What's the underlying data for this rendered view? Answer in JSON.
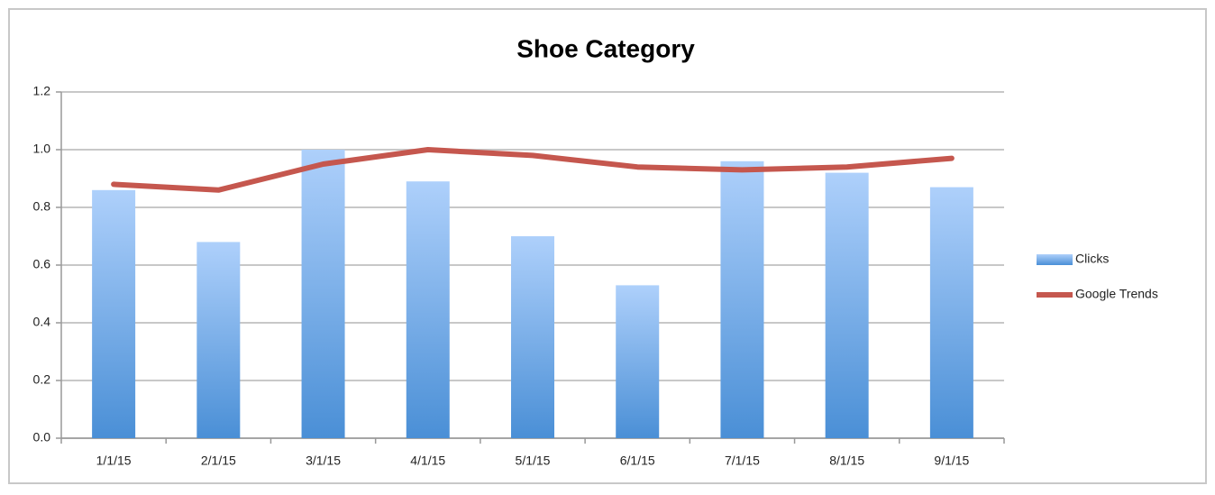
{
  "chart_data": {
    "type": "bar",
    "title": "Shoe Category",
    "categories": [
      "1/1/15",
      "2/1/15",
      "3/1/15",
      "4/1/15",
      "5/1/15",
      "6/1/15",
      "7/1/15",
      "8/1/15",
      "9/1/15"
    ],
    "series": [
      {
        "name": "Clicks",
        "type": "bar",
        "color": "#4a8fd6",
        "values": [
          0.86,
          0.68,
          1.0,
          0.89,
          0.7,
          0.53,
          0.96,
          0.92,
          0.87
        ]
      },
      {
        "name": "Google Trends",
        "type": "line",
        "color": "#c5574e",
        "values": [
          0.88,
          0.86,
          0.95,
          1.0,
          0.98,
          0.94,
          0.93,
          0.94,
          0.97
        ]
      }
    ],
    "ylim": [
      0,
      1.2
    ],
    "yticks": [
      {
        "value": 0,
        "label": "0.0"
      },
      0.2,
      0.4,
      0.6,
      0.8,
      {
        "value": 1,
        "label": "1.0"
      },
      1.2
    ],
    "grid": true,
    "legend": "right"
  }
}
